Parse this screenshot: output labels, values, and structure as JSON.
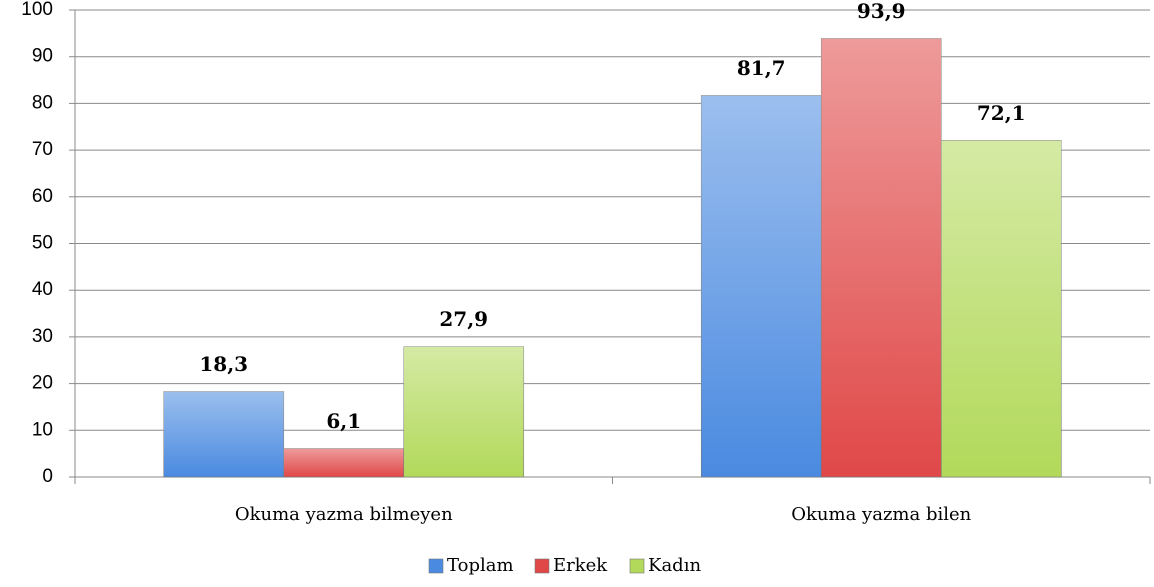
{
  "chart_data": {
    "type": "bar",
    "categories": [
      "Okuma yazma bilmeyen",
      "Okuma yazma bilen"
    ],
    "series": [
      {
        "name": "Toplam",
        "color": "#4a8ae0",
        "values": [
          18.3,
          81.7
        ],
        "value_labels": [
          "18,3",
          "81,7"
        ]
      },
      {
        "name": "Erkek",
        "color": "#e04848",
        "values": [
          6.1,
          93.9
        ],
        "value_labels": [
          "6,1",
          "93,9"
        ]
      },
      {
        "name": "Kadın",
        "color": "#b2d95a",
        "values": [
          27.9,
          72.1
        ],
        "value_labels": [
          "27,9",
          "72,1"
        ]
      }
    ],
    "ylim": [
      0,
      100
    ],
    "yticks": [
      0,
      10,
      20,
      30,
      40,
      50,
      60,
      70,
      80,
      90,
      100
    ],
    "grid": true,
    "legend": "bottom"
  }
}
